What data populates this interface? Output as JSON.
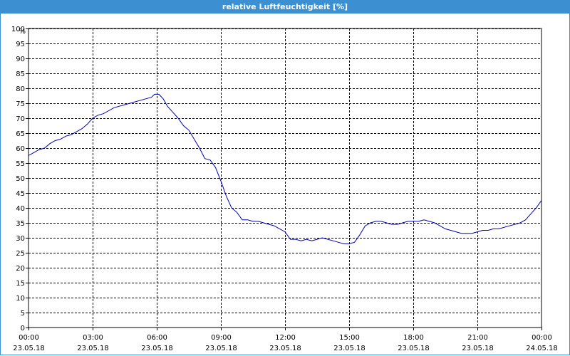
{
  "window": {
    "title": "relative Luftfeuchtigkeit [%]"
  },
  "chart_data": {
    "type": "line",
    "title": "relative Luftfeuchtigkeit [%]",
    "ylabel": "%",
    "ylim": [
      0,
      100
    ],
    "y_ticks": [
      0,
      5,
      10,
      15,
      20,
      25,
      30,
      35,
      40,
      45,
      50,
      55,
      60,
      65,
      70,
      75,
      80,
      85,
      90,
      95,
      100
    ],
    "x_ticks": [
      {
        "hours": 0,
        "time": "00:00",
        "date": "23.05.18"
      },
      {
        "hours": 3,
        "time": "03:00",
        "date": "23.05.18"
      },
      {
        "hours": 6,
        "time": "06:00",
        "date": "23.05.18"
      },
      {
        "hours": 9,
        "time": "09:00",
        "date": "23.05.18"
      },
      {
        "hours": 12,
        "time": "12:00",
        "date": "23.05.18"
      },
      {
        "hours": 15,
        "time": "15:00",
        "date": "23.05.18"
      },
      {
        "hours": 18,
        "time": "18:00",
        "date": "23.05.18"
      },
      {
        "hours": 21,
        "time": "21:00",
        "date": "23.05.18"
      },
      {
        "hours": 24,
        "time": "00:00",
        "date": "24.05.18"
      }
    ],
    "grid": true,
    "line_color": "#0000b4",
    "series": [
      {
        "x": [
          0,
          0.25,
          0.5,
          0.75,
          1.0,
          1.25,
          1.5,
          1.75,
          2.0,
          2.25,
          2.5,
          2.75,
          3.0,
          3.25,
          3.5,
          3.75,
          4.0,
          4.25,
          4.5,
          4.75,
          5.0,
          5.25,
          5.5,
          5.75,
          5.9,
          6.1,
          6.3,
          6.5,
          6.75,
          7.0,
          7.25,
          7.5,
          7.75,
          8.0,
          8.25,
          8.5,
          8.75,
          9.0,
          9.25,
          9.5,
          9.75,
          10.0,
          10.25,
          10.5,
          10.75,
          11.0,
          11.25,
          11.5,
          11.75,
          12.0,
          12.25,
          12.5,
          12.75,
          13.0,
          13.25,
          13.5,
          13.75,
          14.0,
          14.25,
          14.5,
          14.75,
          15.0,
          15.25,
          15.5,
          15.75,
          16.0,
          16.25,
          16.5,
          16.75,
          17.0,
          17.25,
          17.5,
          17.75,
          18.0,
          18.25,
          18.5,
          18.75,
          19.0,
          19.25,
          19.5,
          19.75,
          20.0,
          20.25,
          20.5,
          20.75,
          21.0,
          21.25,
          21.5,
          21.75,
          22.0,
          22.25,
          22.5,
          22.75,
          23.0,
          23.25,
          23.5,
          23.75,
          24.0
        ],
        "y": [
          57.5,
          58.5,
          59.5,
          60,
          61.5,
          62.5,
          63,
          64,
          64.5,
          65.5,
          66.5,
          68,
          70,
          71,
          71.5,
          72.5,
          73.5,
          74,
          74.5,
          75,
          75.5,
          76,
          76.5,
          77,
          78,
          78,
          76.5,
          74,
          72,
          70,
          67.5,
          66,
          63,
          60,
          56.5,
          56,
          53.5,
          49,
          44,
          40,
          38.5,
          36,
          36,
          35.5,
          35.5,
          35,
          34.5,
          34,
          33,
          32,
          29.5,
          29.5,
          29,
          29.5,
          29,
          29.5,
          30,
          29.5,
          29,
          28.5,
          28,
          28,
          28.5,
          31,
          34,
          35,
          35.5,
          35.5,
          35,
          34.5,
          34.5,
          35,
          35.5,
          35.5,
          35.5,
          36,
          35.5,
          35,
          34,
          33,
          32.5,
          32,
          31.5,
          31.5,
          31.5,
          32,
          32.5,
          32.5,
          33,
          33,
          33.5,
          34,
          34.5,
          35,
          36,
          38,
          40,
          42.5
        ]
      }
    ]
  }
}
